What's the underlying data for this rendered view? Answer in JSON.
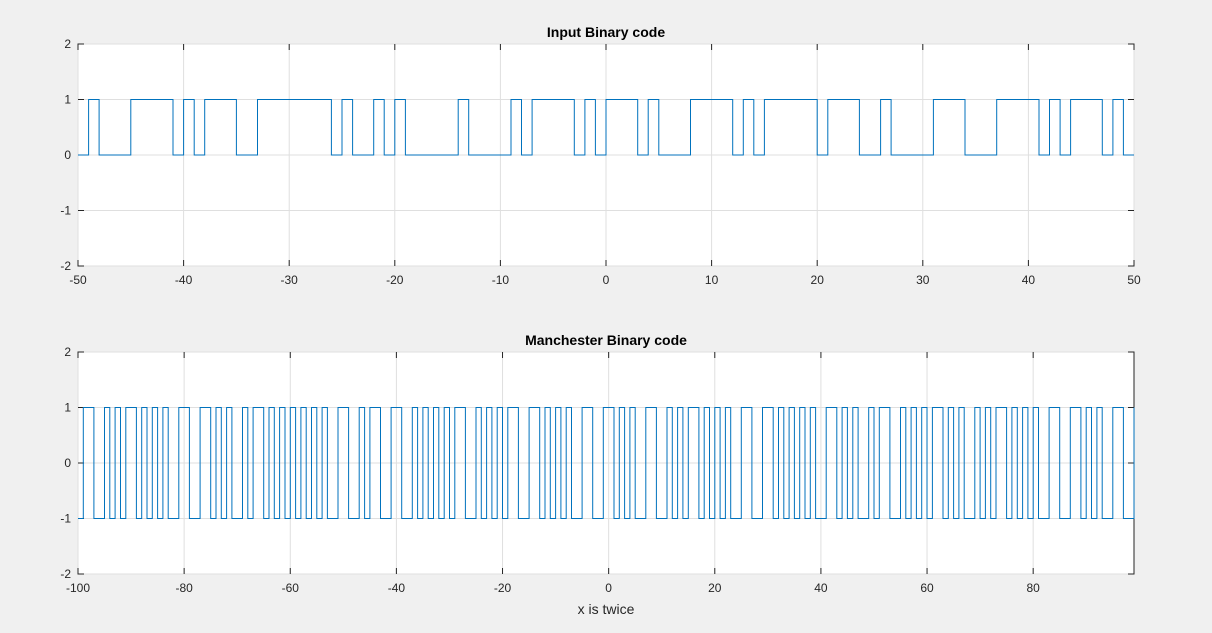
{
  "figure": {
    "background": "#f0f0f0"
  },
  "chart_data": [
    {
      "type": "line",
      "step": true,
      "title": "Input Binary code",
      "xlabel": "",
      "ylabel": "",
      "xlim": [
        -50,
        50
      ],
      "ylim": [
        -2,
        2
      ],
      "xticks": [
        -50,
        -40,
        -30,
        -20,
        -10,
        0,
        10,
        20,
        30,
        40,
        50
      ],
      "xtick_labels": [
        "-50",
        "-40",
        "-30",
        "-20",
        "-10",
        "0",
        "10",
        "20",
        "30",
        "40",
        "50"
      ],
      "yticks": [
        -2,
        -1,
        0,
        1,
        2
      ],
      "ytick_labels": [
        "-2",
        "-1",
        "0",
        "1",
        "2"
      ],
      "grid": true,
      "color": "#0072bd",
      "series": [
        {
          "x_start": -50,
          "bit_width": 1,
          "values": [
            0,
            1,
            0,
            0,
            0,
            1,
            1,
            1,
            1,
            0,
            1,
            0,
            1,
            1,
            1,
            0,
            0,
            1,
            1,
            1,
            1,
            1,
            1,
            1,
            0,
            1,
            0,
            0,
            1,
            0,
            1,
            0,
            0,
            0,
            0,
            0,
            1,
            0,
            0,
            0,
            0,
            1,
            0,
            1,
            1,
            1,
            1,
            0,
            1,
            0,
            1,
            1,
            1,
            0,
            1,
            0,
            0,
            0,
            1,
            1,
            1,
            1,
            0,
            1,
            0,
            1,
            1,
            1,
            1,
            1,
            0,
            1,
            1,
            1,
            0,
            0,
            1,
            0,
            0,
            0,
            0,
            1,
            1,
            1,
            0,
            0,
            0,
            1,
            1,
            1,
            1,
            0,
            1,
            0,
            1,
            1,
            1,
            0,
            1,
            0
          ]
        }
      ]
    },
    {
      "type": "line",
      "step": true,
      "title": "Manchester Binary code",
      "xlabel": "x is twice",
      "ylabel": "",
      "xlim": [
        -100,
        99
      ],
      "ylim": [
        -2,
        2
      ],
      "xticks": [
        -100,
        -80,
        -60,
        -40,
        -20,
        0,
        20,
        40,
        60,
        80
      ],
      "xtick_labels": [
        "-100",
        "-80",
        "-60",
        "-40",
        "-20",
        "0",
        "20",
        "40",
        "60",
        "80"
      ],
      "yticks": [
        -2,
        -1,
        0,
        1,
        2
      ],
      "ytick_labels": [
        "-2",
        "-1",
        "0",
        "1",
        "2"
      ],
      "grid": true,
      "color": "#0072bd",
      "series": [
        {
          "x_start": -100,
          "bit_width": 2,
          "encoding": "manchester",
          "source_bits_from_first_chart": true
        }
      ]
    }
  ]
}
